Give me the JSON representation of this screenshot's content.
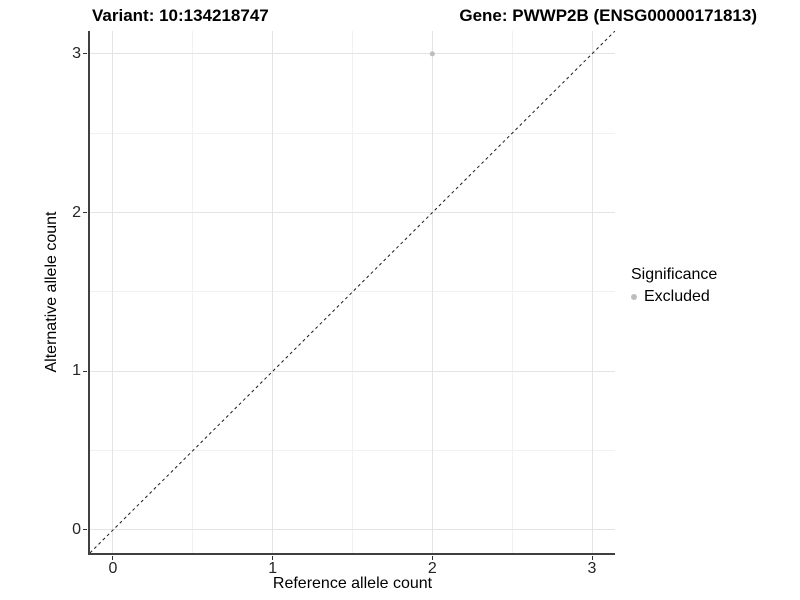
{
  "header": {
    "variant_title": "Variant: 10:134218747",
    "gene_title": "Gene: PWWP2B (ENSG00000171813)"
  },
  "chart_data": {
    "type": "scatter",
    "title_left": "Variant: 10:134218747",
    "title_right": "Gene: PWWP2B (ENSG00000171813)",
    "xlabel": "Reference allele count",
    "ylabel": "Alternative allele count",
    "xlim": [
      -0.144,
      3.144
    ],
    "ylim": [
      -0.145,
      3.144
    ],
    "x_major_ticks": [
      0,
      1,
      2,
      3
    ],
    "y_major_ticks": [
      0,
      1,
      2,
      3
    ],
    "x_minor_ticks": [
      0.5,
      1.5,
      2.5
    ],
    "y_minor_ticks": [
      0.5,
      1.5,
      2.5
    ],
    "grid": "major+minor",
    "legend_position": "right",
    "series": [
      {
        "name": "Excluded",
        "color": "#bdbdbd",
        "points": [
          {
            "x": 2,
            "y": 3
          }
        ]
      }
    ],
    "reference_line": {
      "kind": "identity",
      "dashed": true,
      "color": "#1a1a1a",
      "dash": [
        3,
        3
      ]
    }
  },
  "legend": {
    "title": "Significance",
    "items": [
      {
        "label": "Excluded",
        "color": "#bdbdbd"
      }
    ]
  },
  "colors": {
    "background": "#ffffff",
    "grid_major": "#e4e4e4",
    "grid_minor": "#f1f1f1",
    "axis_line": "#404040",
    "tick_text": "#262626",
    "point": "#bdbdbd"
  }
}
